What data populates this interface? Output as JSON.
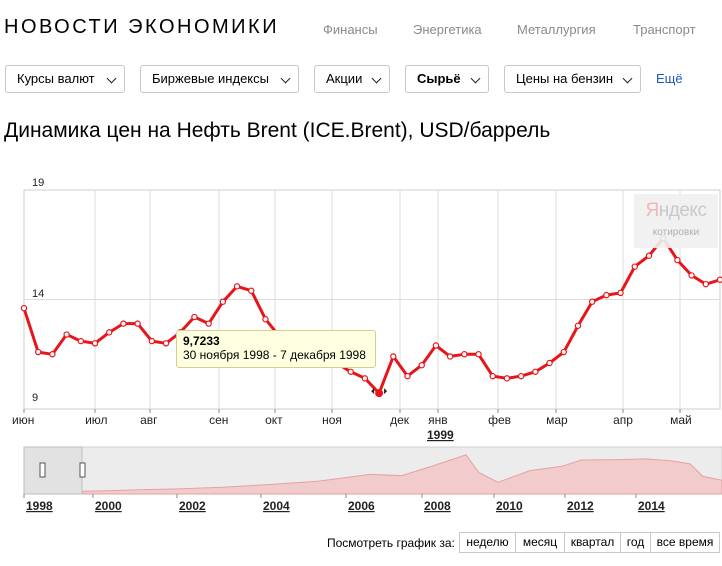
{
  "header": {
    "title": "НОВОСТИ ЭКОНОМИКИ"
  },
  "topnav": [
    {
      "label": "Финансы"
    },
    {
      "label": "Энергетика"
    },
    {
      "label": "Металлургия"
    },
    {
      "label": "Транспорт"
    }
  ],
  "dropdowns": [
    {
      "label": "Курсы валют",
      "selected": false
    },
    {
      "label": "Биржевые индексы",
      "selected": false
    },
    {
      "label": "Акции",
      "selected": false
    },
    {
      "label": "Сырьё",
      "selected": true
    },
    {
      "label": "Цены на бензин",
      "selected": false
    }
  ],
  "more_label": "Ещё",
  "chart_title": "Динамика цен на Нефть Brent (ICE.Brent), USD/баррель",
  "watermark": {
    "brand_first": "Я",
    "brand_rest": "ндекс",
    "sub": "котировки"
  },
  "tooltip": {
    "value": "9,7233",
    "dates": "30 ноября 1998 - 7 декабря 1998"
  },
  "navigator": {
    "years": [
      "1998",
      "2000",
      "2002",
      "2004",
      "2006",
      "2008",
      "2010",
      "2012",
      "2014"
    ]
  },
  "period": {
    "label": "Посмотреть график за:",
    "buttons": [
      "неделю",
      "месяц",
      "квартал",
      "год",
      "все время"
    ]
  },
  "colors": {
    "line": "#e8151b",
    "marker": "#e8151b",
    "grid": "#dcdcdc",
    "navigator_fill": "#f2cccc"
  },
  "chart_data": {
    "type": "line",
    "title": "Динамика цен на Нефть Brent (ICE.Brent), USD/баррель",
    "ylim": [
      9,
      19
    ],
    "y_ticks": [
      "9",
      "14",
      "19"
    ],
    "x_ticks": [
      "июн",
      "июл",
      "авг",
      "сен",
      "окт",
      "ноя",
      "дек",
      "янв",
      "фев",
      "мар",
      "апр",
      "май"
    ],
    "x_year_label": "1999",
    "grid": true,
    "series": [
      {
        "values": [
          13.6,
          11.6,
          11.5,
          12.4,
          12.1,
          12.0,
          12.5,
          12.9,
          12.9,
          12.1,
          12.0,
          12.5,
          13.2,
          12.9,
          13.9,
          14.6,
          14.4,
          13.1,
          12.3,
          12.2,
          12.0,
          11.9,
          11.1,
          10.7,
          10.4,
          9.7233,
          11.4,
          10.5,
          11.0,
          11.9,
          11.4,
          11.5,
          11.5,
          10.5,
          10.4,
          10.5,
          10.7,
          11.1,
          11.6,
          12.8,
          13.9,
          14.2,
          14.3,
          15.5,
          16.0,
          16.8,
          15.8,
          15.1,
          14.7,
          14.9
        ],
        "highlight_index": 25
      }
    ]
  }
}
